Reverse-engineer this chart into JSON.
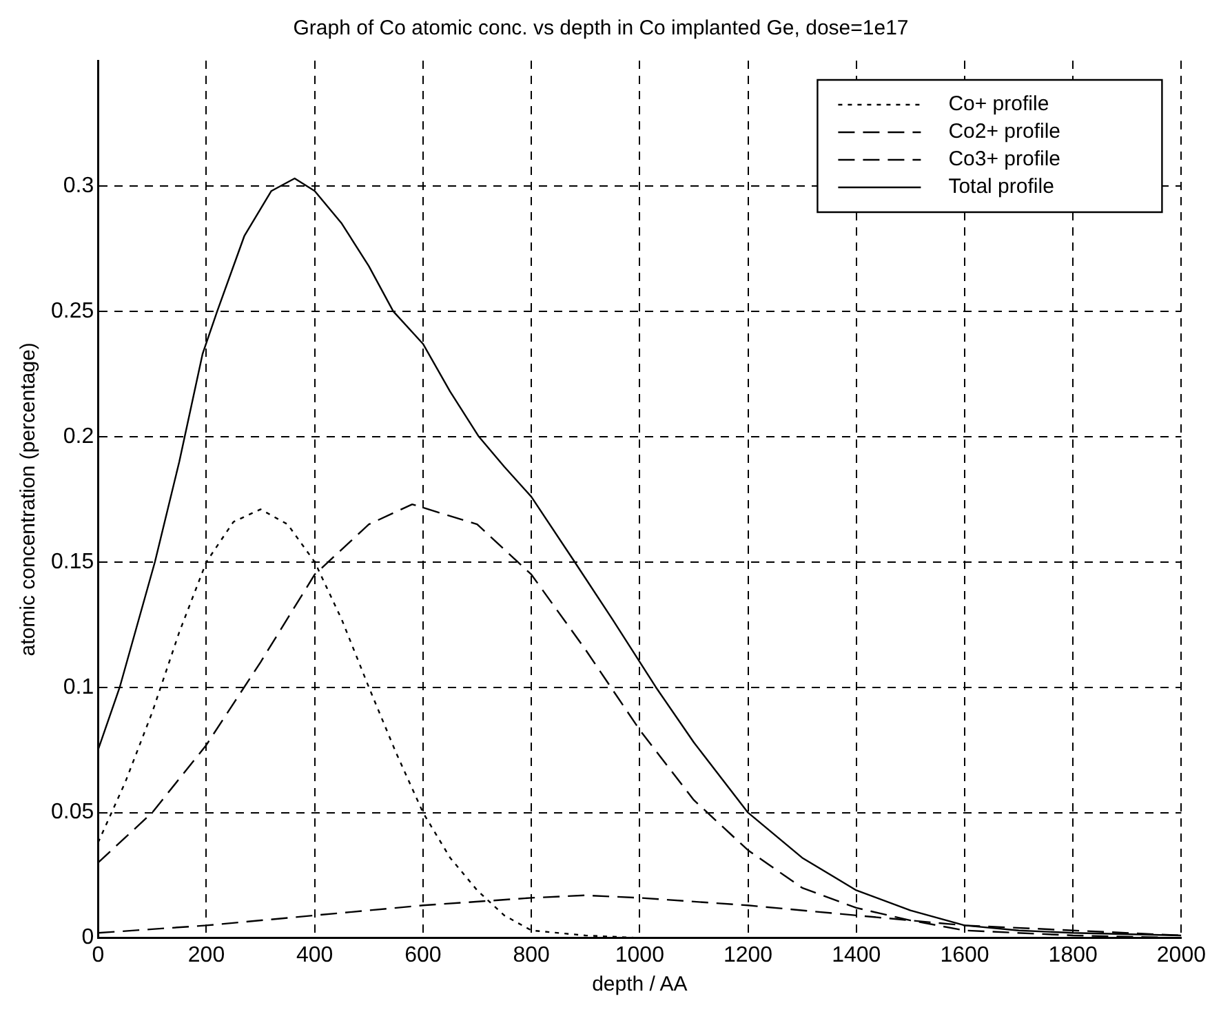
{
  "chart_data": {
    "type": "line",
    "title": "Graph of Co atomic conc. vs depth in Co implanted Ge, dose=1e17",
    "xlabel": "depth / AA",
    "ylabel": "atomic concentration (percentage)",
    "xlim": [
      0,
      2000
    ],
    "xticks": [
      0,
      200,
      400,
      600,
      800,
      1000,
      1200,
      1400,
      1600,
      1800,
      2000
    ],
    "ylim": [
      0,
      0.35
    ],
    "yticks": [
      0,
      0.05,
      0.1,
      0.15,
      0.2,
      0.25,
      0.3
    ],
    "grid": true,
    "legend": "top right",
    "marker": "none",
    "series": [
      {
        "name": "Co+ profile",
        "color": "#000000",
        "line_style": "dotted",
        "x": [
          0,
          50,
          100,
          150,
          200,
          250,
          300,
          350,
          400,
          450,
          500,
          550,
          600,
          650,
          700,
          750,
          800,
          900,
          1000,
          1200,
          1400,
          1600,
          1800,
          2000
        ],
        "values": [
          0.038,
          0.062,
          0.09,
          0.122,
          0.15,
          0.166,
          0.171,
          0.165,
          0.15,
          0.127,
          0.1,
          0.074,
          0.05,
          0.032,
          0.019,
          0.009,
          0.003,
          0.001,
          0,
          0,
          0,
          0,
          0,
          0
        ]
      },
      {
        "name": "Co2+ profile",
        "color": "#000000",
        "line_style": "dashed",
        "x": [
          0,
          100,
          200,
          300,
          400,
          500,
          580,
          700,
          800,
          900,
          1000,
          1100,
          1200,
          1300,
          1400,
          1500,
          1600,
          1800,
          2000
        ],
        "values": [
          0.03,
          0.05,
          0.077,
          0.11,
          0.145,
          0.165,
          0.173,
          0.165,
          0.145,
          0.115,
          0.083,
          0.055,
          0.035,
          0.02,
          0.012,
          0.007,
          0.003,
          0.001,
          0
        ]
      },
      {
        "name": "Co3+ profile",
        "color": "#000000",
        "line_style": "dashed",
        "x": [
          0,
          200,
          400,
          600,
          800,
          900,
          1000,
          1200,
          1400,
          1600,
          1800,
          2000
        ],
        "values": [
          0.002,
          0.005,
          0.009,
          0.013,
          0.016,
          0.017,
          0.016,
          0.013,
          0.009,
          0.005,
          0.003,
          0.001
        ]
      },
      {
        "name": "Total profile",
        "color": "#000000",
        "line_style": "solid",
        "x": [
          0,
          40,
          105,
          150,
          193,
          220,
          270,
          320,
          363,
          400,
          450,
          500,
          545,
          600,
          650,
          703,
          750,
          800,
          880,
          950,
          1030,
          1100,
          1200,
          1300,
          1400,
          1500,
          1600,
          1700,
          1800,
          2000
        ],
        "values": [
          0.075,
          0.1,
          0.15,
          0.19,
          0.233,
          0.25,
          0.28,
          0.298,
          0.303,
          0.298,
          0.285,
          0.268,
          0.25,
          0.237,
          0.218,
          0.2,
          0.188,
          0.176,
          0.15,
          0.127,
          0.1,
          0.078,
          0.05,
          0.032,
          0.019,
          0.011,
          0.005,
          0.003,
          0.002,
          0.001
        ]
      }
    ]
  }
}
